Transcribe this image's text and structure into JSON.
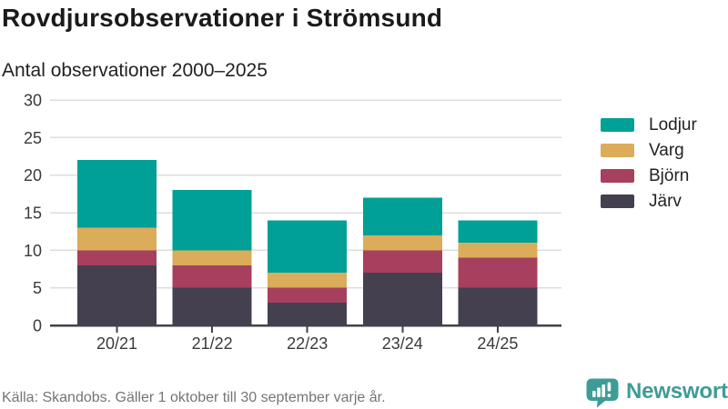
{
  "header": {
    "title": "Rovdjursobservationer i Strömsund",
    "subtitle": "Antal observationer 2000–2025"
  },
  "chart_data": {
    "type": "bar",
    "stacked": true,
    "title": "Rovdjursobservationer i Strömsund",
    "subtitle": "Antal observationer 2000–2025",
    "categories": [
      "20/21",
      "21/22",
      "22/23",
      "23/24",
      "24/25"
    ],
    "series": [
      {
        "name": "Järv",
        "color": "#44404f",
        "values": [
          8,
          5,
          3,
          7,
          5
        ]
      },
      {
        "name": "Björn",
        "color": "#a7405e",
        "values": [
          2,
          3,
          2,
          3,
          4
        ]
      },
      {
        "name": "Varg",
        "color": "#dbac5a",
        "values": [
          3,
          2,
          2,
          2,
          2
        ]
      },
      {
        "name": "Lodjur",
        "color": "#00a097",
        "values": [
          9,
          8,
          7,
          5,
          3
        ]
      }
    ],
    "totals": [
      22,
      18,
      14,
      17,
      14
    ],
    "ylim": [
      0,
      30
    ],
    "yticks": [
      0,
      5,
      10,
      15,
      20,
      25,
      30
    ],
    "grid": "horizontal",
    "legend_position": "right",
    "xlabel": "",
    "ylabel": "Antal observationer"
  },
  "legend": {
    "items": [
      {
        "label": "Lodjur",
        "color": "#00a097"
      },
      {
        "label": "Varg",
        "color": "#dbac5a"
      },
      {
        "label": "Björn",
        "color": "#a7405e"
      },
      {
        "label": "Järv",
        "color": "#44404f"
      }
    ]
  },
  "footer": {
    "source": "Källa: Skandobs. Gäller 1 oktober till 30 september varje år.",
    "brand": "Newsworthy"
  },
  "colors": {
    "lodjur_teal": "#00a097",
    "varg_gold": "#dbac5a",
    "bjorn_maroon": "#a7405e",
    "jarv_slate": "#44404f",
    "gridline": "#dcdcdc",
    "axis_line": "#44404c",
    "axis_text": "#3a3a3a",
    "title_text": "#1a1a1a",
    "muted_text": "#757575",
    "brand_teal": "#3e9c97"
  }
}
